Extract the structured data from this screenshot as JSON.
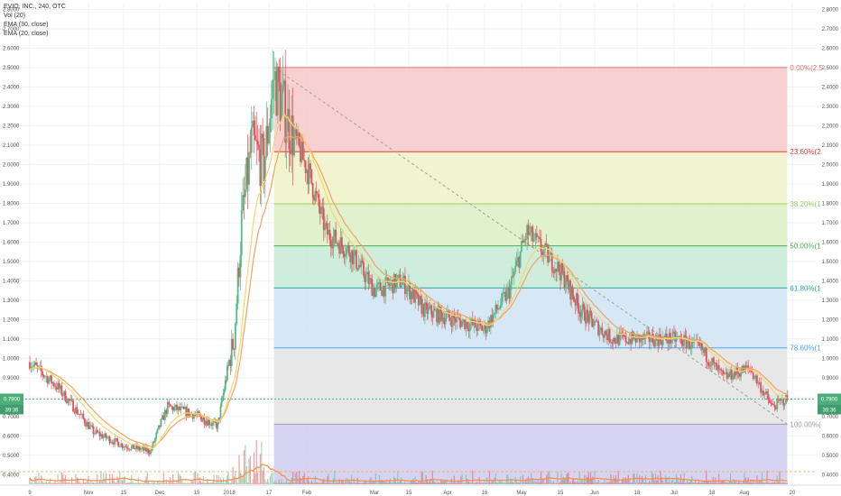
{
  "legend": {
    "title": "EVIO, INC., 240, OTC",
    "vol": "Vol (20)",
    "ema30": "EMA (30, close)",
    "ema20": "EMA (20, close)"
  },
  "colors": {
    "up": "#53b987",
    "down": "#eb4d5c",
    "ema30": "#f7a35c",
    "ema20": "#f5d76e",
    "volMA": "#ff8c40",
    "grid": "#eef0f3",
    "badge": "#4caf7a"
  },
  "price_badge": {
    "value": "0.7900",
    "time": "39:36"
  },
  "chart_data": {
    "type": "candlestick",
    "y_axis_ticks": [
      "2.8000",
      "2.7000",
      "2.6000",
      "2.5000",
      "2.4000",
      "2.3000",
      "2.2000",
      "2.1000",
      "2.0000",
      "1.9000",
      "1.8000",
      "1.7000",
      "1.6000",
      "1.5000",
      "1.4000",
      "1.3000",
      "1.2000",
      "1.1000",
      "1.0000",
      "0.9000",
      "0.8000",
      "0.7000",
      "0.6000",
      "0.5000",
      "0.4000"
    ],
    "ylim": [
      0.35,
      2.83
    ],
    "x_labels": [
      "9",
      "Nov",
      "15",
      "Dec",
      "15",
      "2018",
      "17",
      "Feb",
      "Mar",
      "15",
      "Apr",
      "16",
      "May",
      "15",
      "Jun",
      "18",
      "Jul",
      "18",
      "Aug",
      "20"
    ],
    "fib_levels": [
      {
        "ratio": "0.00%",
        "label": "0.00%(2.5",
        "price": 2.5,
        "color": "#e57373",
        "fill": "#f6c9c9"
      },
      {
        "ratio": "23.60%",
        "label": "23.60%(2",
        "price": 2.066,
        "color": "#e53935",
        "fill": "#eef3c7"
      },
      {
        "ratio": "38.20%",
        "label": "38.20%(1",
        "price": 1.797,
        "color": "#9ccc65",
        "fill": "#d9f0c4"
      },
      {
        "ratio": "50.00%",
        "label": "50.00%(1",
        "price": 1.58,
        "color": "#4caf50",
        "fill": "#c6ead6"
      },
      {
        "ratio": "61.80%",
        "label": "61.80%(1",
        "price": 1.363,
        "color": "#26a69a",
        "fill": "#cfe3f3"
      },
      {
        "ratio": "78.60%",
        "label": "78.60%(1",
        "price": 1.054,
        "color": "#42a5f5",
        "fill": "#e3e3e3"
      },
      {
        "ratio": "100.00%",
        "label": "100.00%(",
        "price": 0.66,
        "color": "#9e9e9e",
        "fill": "#cfcdf0"
      }
    ],
    "anchors": [
      {
        "date": "2017-10-09",
        "price": 0.98
      },
      {
        "date": "2017-10-20",
        "price": 0.85
      },
      {
        "date": "2017-11-03",
        "price": 0.62
      },
      {
        "date": "2017-11-15",
        "price": 0.55
      },
      {
        "date": "2017-11-27",
        "price": 0.52
      },
      {
        "date": "2017-12-04",
        "price": 0.75
      },
      {
        "date": "2017-12-12",
        "price": 0.72
      },
      {
        "date": "2017-12-26",
        "price": 0.65
      },
      {
        "date": "2018-01-03",
        "price": 1.1
      },
      {
        "date": "2018-01-06",
        "price": 1.7
      },
      {
        "date": "2018-01-10",
        "price": 2.1
      },
      {
        "date": "2018-01-15",
        "price": 2.0
      },
      {
        "date": "2018-01-19",
        "price": 2.45
      },
      {
        "date": "2018-01-25",
        "price": 2.2
      },
      {
        "date": "2018-02-02",
        "price": 1.95
      },
      {
        "date": "2018-02-09",
        "price": 1.65
      },
      {
        "date": "2018-02-19",
        "price": 1.55
      },
      {
        "date": "2018-03-01",
        "price": 1.35
      },
      {
        "date": "2018-03-12",
        "price": 1.4
      },
      {
        "date": "2018-03-22",
        "price": 1.25
      },
      {
        "date": "2018-04-05",
        "price": 1.2
      },
      {
        "date": "2018-04-16",
        "price": 1.15
      },
      {
        "date": "2018-04-26",
        "price": 1.35
      },
      {
        "date": "2018-05-03",
        "price": 1.65
      },
      {
        "date": "2018-05-15",
        "price": 1.45
      },
      {
        "date": "2018-05-25",
        "price": 1.25
      },
      {
        "date": "2018-06-08",
        "price": 1.1
      },
      {
        "date": "2018-06-20",
        "price": 1.1
      },
      {
        "date": "2018-07-05",
        "price": 1.1
      },
      {
        "date": "2018-07-15",
        "price": 1.05
      },
      {
        "date": "2018-07-25",
        "price": 0.9
      },
      {
        "date": "2018-08-05",
        "price": 0.95
      },
      {
        "date": "2018-08-14",
        "price": 0.75
      },
      {
        "date": "2018-08-20",
        "price": 0.79
      }
    ]
  }
}
